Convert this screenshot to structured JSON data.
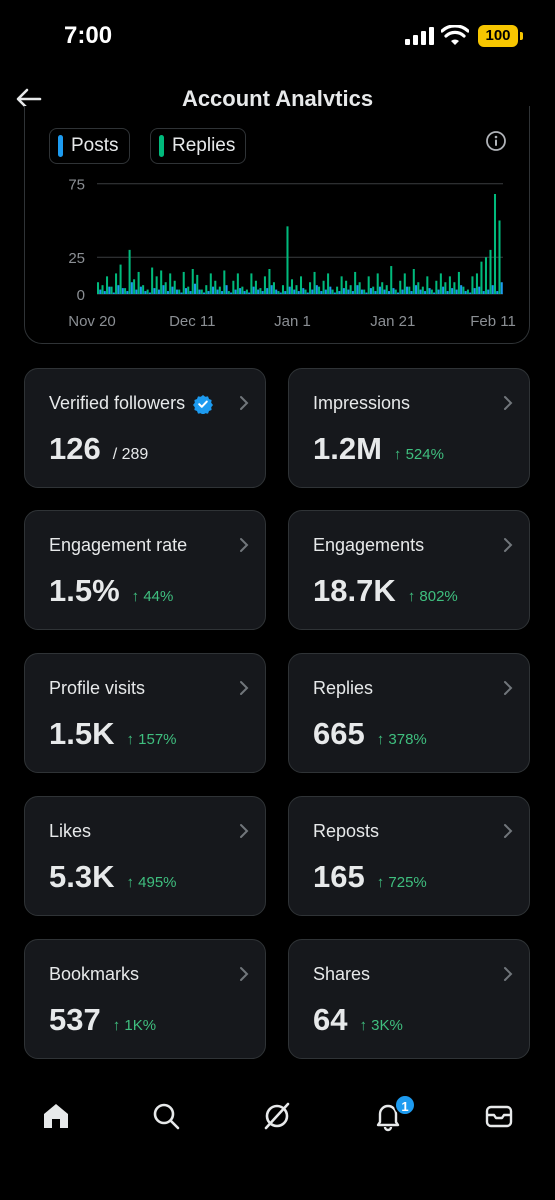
{
  "status_bar": {
    "time": "7:00",
    "battery": "100"
  },
  "header": {
    "title": "Account Analytics"
  },
  "chart_legend": {
    "posts": "Posts",
    "replies": "Replies"
  },
  "colors": {
    "posts": "#1d9bf0",
    "replies": "#00ba7c",
    "delta_up": "#3fbf7f",
    "tile_bg": "#16181c",
    "border": "#2f3336"
  },
  "chart_data": {
    "type": "bar",
    "x_ticks": [
      "Nov 20",
      "Dec 11",
      "Jan 1",
      "Jan 21",
      "Feb 11"
    ],
    "y_ticks": [
      0,
      25,
      75
    ],
    "ylim": [
      0,
      85
    ],
    "grid": true,
    "series": [
      {
        "name": "Posts",
        "values": [
          3,
          2,
          5,
          1,
          6,
          4,
          2,
          8,
          3,
          5,
          2,
          1,
          4,
          3,
          6,
          2,
          5,
          3,
          1,
          4,
          2,
          7,
          3,
          1,
          2,
          5,
          3,
          2,
          6,
          1,
          3,
          4,
          2,
          1,
          5,
          3,
          2,
          4,
          6,
          3,
          1,
          2,
          5,
          3,
          2,
          4,
          1,
          3,
          6,
          2,
          3,
          5,
          1,
          2,
          4,
          3,
          2,
          6,
          3,
          1,
          4,
          2,
          5,
          3,
          2,
          4,
          1,
          3,
          5,
          2,
          6,
          3,
          2,
          4,
          1,
          3,
          5,
          2,
          4,
          3,
          6,
          2,
          1,
          4,
          5,
          2,
          3,
          6,
          2,
          8
        ]
      },
      {
        "name": "Replies",
        "values": [
          8,
          6,
          12,
          5,
          14,
          20,
          4,
          30,
          10,
          15,
          6,
          3,
          18,
          12,
          16,
          8,
          14,
          9,
          3,
          15,
          5,
          17,
          13,
          3,
          6,
          14,
          9,
          5,
          16,
          2,
          9,
          14,
          5,
          3,
          14,
          9,
          4,
          12,
          17,
          8,
          2,
          6,
          46,
          10,
          6,
          12,
          3,
          8,
          15,
          5,
          9,
          14,
          3,
          5,
          12,
          9,
          6,
          15,
          8,
          3,
          12,
          5,
          14,
          8,
          6,
          19,
          3,
          9,
          14,
          5,
          17,
          8,
          5,
          12,
          3,
          9,
          14,
          8,
          12,
          8,
          15,
          5,
          3,
          12,
          14,
          22,
          25,
          30,
          68,
          50
        ]
      }
    ]
  },
  "tiles": [
    {
      "label": "Verified followers",
      "value": "126",
      "total": "/ 289",
      "icon": "verified-badge-icon"
    },
    {
      "label": "Impressions",
      "value": "1.2M",
      "delta": "↑ 524%"
    },
    {
      "label": "Engagement rate",
      "value": "1.5%",
      "delta": "↑ 44%"
    },
    {
      "label": "Engagements",
      "value": "18.7K",
      "delta": "↑ 802%"
    },
    {
      "label": "Profile visits",
      "value": "1.5K",
      "delta": "↑ 157%"
    },
    {
      "label": "Replies",
      "value": "665",
      "delta": "↑ 378%"
    },
    {
      "label": "Likes",
      "value": "5.3K",
      "delta": "↑ 495%"
    },
    {
      "label": "Reposts",
      "value": "165",
      "delta": "↑ 725%"
    },
    {
      "label": "Bookmarks",
      "value": "537",
      "delta": "↑ 1K%"
    },
    {
      "label": "Shares",
      "value": "64",
      "delta": "↑ 3K%"
    }
  ],
  "tabbar": {
    "items": [
      "home-icon",
      "search-icon",
      "grok-icon",
      "notifications-icon",
      "messages-icon"
    ],
    "notification_count": "1"
  }
}
